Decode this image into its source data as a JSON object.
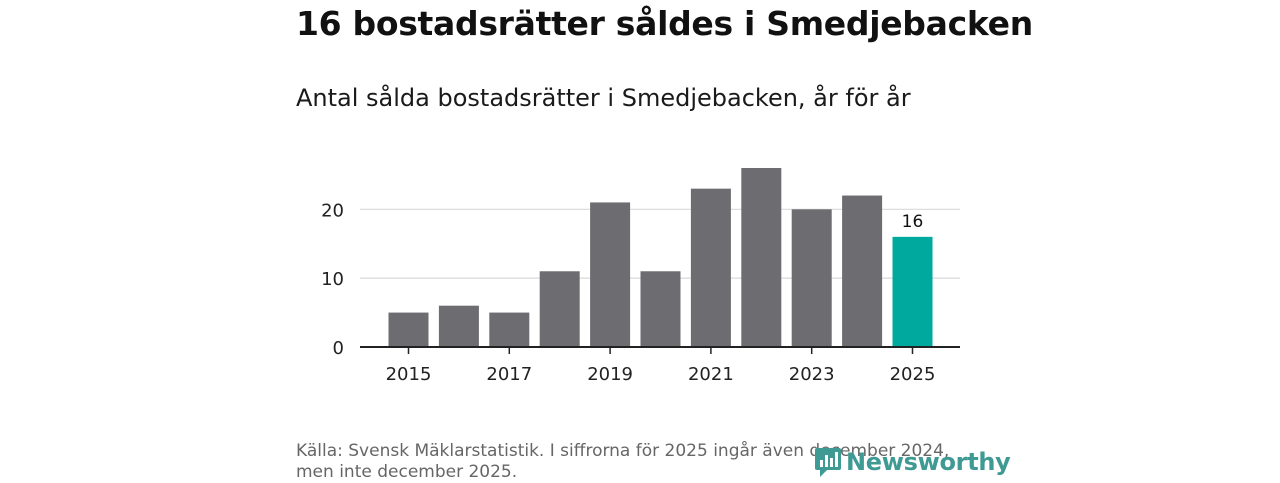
{
  "header": {
    "title": "16 bostadsrätter såldes i Smedjebacken",
    "subtitle": "Antal sålda bostadsrätter i Smedjebacken, år för år"
  },
  "chart_data": {
    "type": "bar",
    "title": "Antal sålda bostadsrätter i Smedjebacken, år för år",
    "xlabel": "",
    "ylabel": "",
    "categories": [
      "2015",
      "2016",
      "2017",
      "2018",
      "2019",
      "2020",
      "2021",
      "2022",
      "2023",
      "2024",
      "2025"
    ],
    "values": [
      5,
      6,
      5,
      11,
      21,
      11,
      23,
      26,
      20,
      22,
      16
    ],
    "x_tick_labels": [
      "2015",
      "2017",
      "2019",
      "2021",
      "2023",
      "2025"
    ],
    "y_ticks": [
      0,
      10,
      20
    ],
    "ylim": [
      0,
      26
    ],
    "grid": true,
    "highlight": {
      "category": "2025",
      "label": "16"
    },
    "colors": {
      "bar": "#6d6c71",
      "highlight": "#00a99d",
      "grid": "#d9d9d9",
      "axis": "#222222"
    }
  },
  "footer": {
    "source_line1": "Källa: Svensk Mäklarstatistik. I siffrorna för 2025 ingår även december 2024,",
    "source_line2": "men inte december 2025."
  },
  "logo": {
    "text": "Newsworthy",
    "icon": "newsworthy-logo-icon",
    "color": "#3f9a93"
  }
}
